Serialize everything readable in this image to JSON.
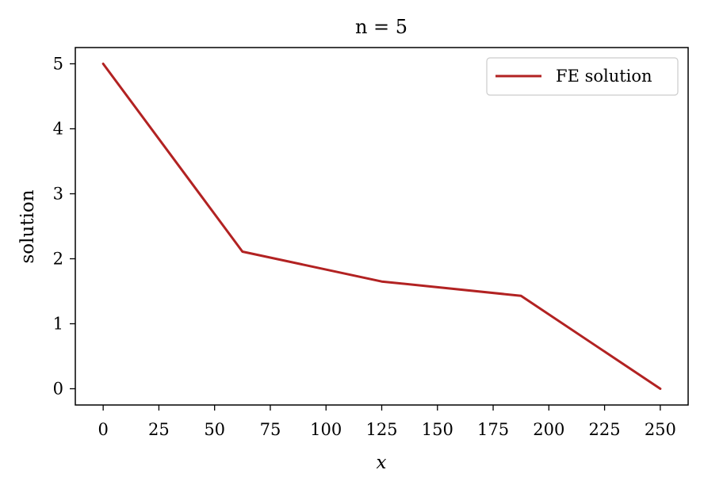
{
  "chart_data": {
    "type": "line",
    "title": "n = 5",
    "xlabel": "x",
    "ylabel": "solution",
    "xlim": [
      -12.5,
      262.5
    ],
    "ylim": [
      -0.25,
      5.25
    ],
    "xticks": [
      0,
      25,
      50,
      75,
      100,
      125,
      150,
      175,
      200,
      225,
      250
    ],
    "yticks": [
      0,
      1,
      2,
      3,
      4,
      5
    ],
    "grid": false,
    "legend_position": "top-right",
    "series": [
      {
        "name": "FE solution",
        "color": "#b22222",
        "x": [
          0,
          62.5,
          125,
          187.5,
          250
        ],
        "y": [
          5.0,
          2.11,
          1.65,
          1.43,
          0.0
        ]
      }
    ]
  }
}
